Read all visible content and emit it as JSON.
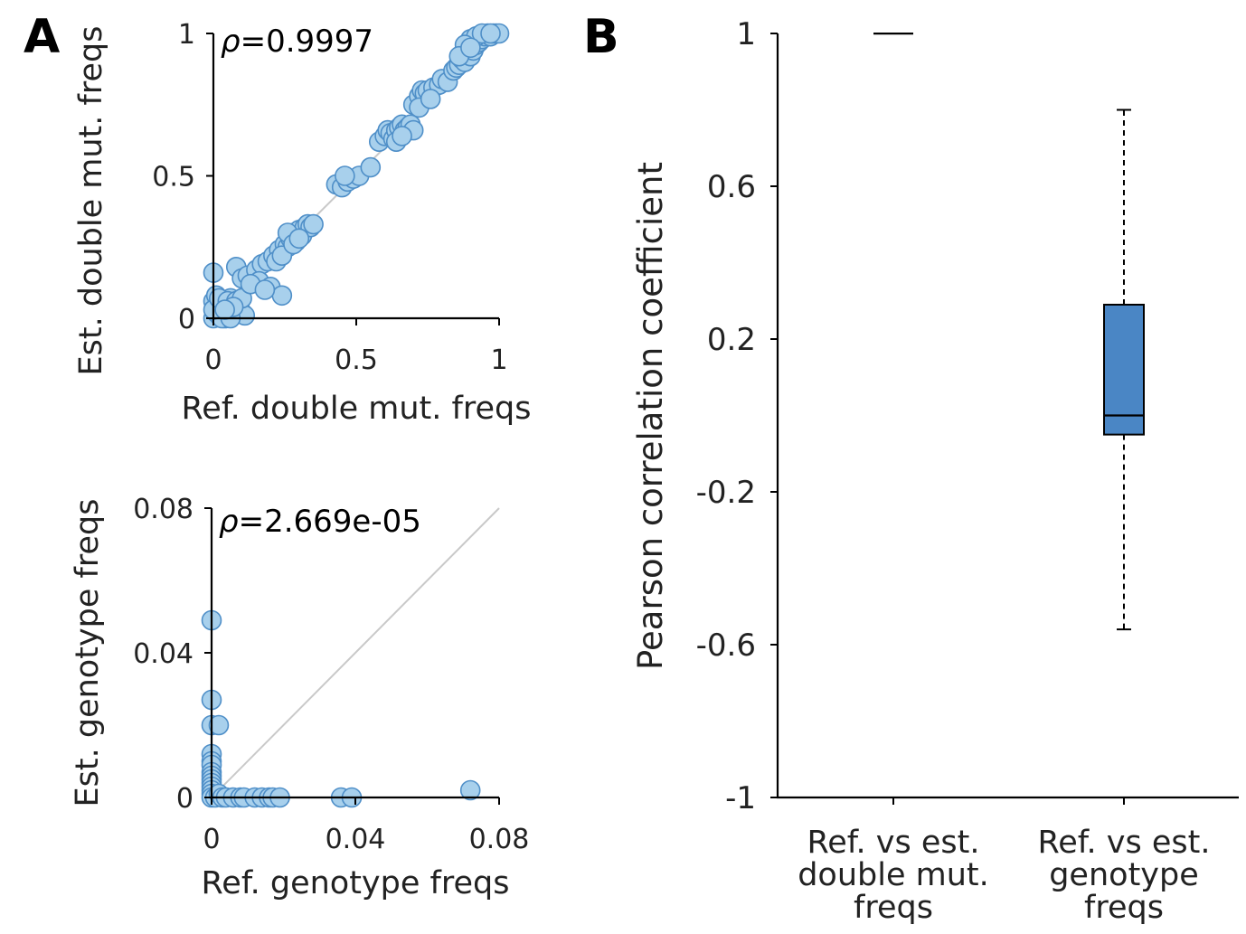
{
  "panel_labels": {
    "a": "A",
    "b": "B"
  },
  "colors": {
    "marker_fill": "#a8d0ec",
    "marker_edge": "#4f8fc8",
    "box_fill": "#4a86c5",
    "diagonal": "#c9c9c9"
  },
  "chart_data": [
    {
      "id": "A-top",
      "type": "scatter",
      "xlabel": "Ref. double mut. freqs",
      "ylabel": "Est. double mut. freqs",
      "annotation": {
        "symbol": "ρ",
        "text": "=0.9997"
      },
      "xlim": [
        0,
        1
      ],
      "ylim": [
        0,
        1
      ],
      "xticks": [
        0,
        0.5,
        1
      ],
      "yticks": [
        0,
        0.5,
        1
      ],
      "xtick_labels": [
        "0",
        "0.5",
        "1"
      ],
      "ytick_labels": [
        "0",
        "0.5",
        "1"
      ],
      "identity_line": true,
      "points": [
        [
          0.0,
          0.0
        ],
        [
          0.01,
          0.02
        ],
        [
          0.02,
          0.01
        ],
        [
          0.03,
          0.05
        ],
        [
          0.0,
          0.06
        ],
        [
          0.01,
          0.08
        ],
        [
          0.02,
          0.04
        ],
        [
          0.04,
          0.0
        ],
        [
          0.05,
          0.02
        ],
        [
          0.06,
          0.07
        ],
        [
          0.07,
          0.01
        ],
        [
          0.08,
          0.03
        ],
        [
          0.09,
          0.05
        ],
        [
          0.1,
          0.02
        ],
        [
          0.11,
          0.01
        ],
        [
          0.03,
          0.0
        ],
        [
          0.06,
          0.0
        ],
        [
          0.0,
          0.03
        ],
        [
          0.02,
          0.07
        ],
        [
          0.05,
          0.06
        ],
        [
          0.08,
          0.06
        ],
        [
          0.1,
          0.07
        ],
        [
          0.07,
          0.04
        ],
        [
          0.04,
          0.03
        ],
        [
          0.0,
          0.16
        ],
        [
          0.08,
          0.18
        ],
        [
          0.1,
          0.14
        ],
        [
          0.12,
          0.15
        ],
        [
          0.15,
          0.17
        ],
        [
          0.17,
          0.19
        ],
        [
          0.19,
          0.2
        ],
        [
          0.16,
          0.13
        ],
        [
          0.13,
          0.12
        ],
        [
          0.2,
          0.11
        ],
        [
          0.24,
          0.08
        ],
        [
          0.18,
          0.1
        ],
        [
          0.21,
          0.22
        ],
        [
          0.23,
          0.24
        ],
        [
          0.22,
          0.2
        ],
        [
          0.25,
          0.26
        ],
        [
          0.26,
          0.25
        ],
        [
          0.27,
          0.28
        ],
        [
          0.28,
          0.3
        ],
        [
          0.29,
          0.27
        ],
        [
          0.3,
          0.31
        ],
        [
          0.31,
          0.29
        ],
        [
          0.32,
          0.32
        ],
        [
          0.33,
          0.33
        ],
        [
          0.34,
          0.32
        ],
        [
          0.35,
          0.33
        ],
        [
          0.24,
          0.22
        ],
        [
          0.26,
          0.3
        ],
        [
          0.28,
          0.26
        ],
        [
          0.3,
          0.28
        ],
        [
          0.43,
          0.47
        ],
        [
          0.45,
          0.46
        ],
        [
          0.47,
          0.48
        ],
        [
          0.49,
          0.49
        ],
        [
          0.51,
          0.5
        ],
        [
          0.55,
          0.53
        ],
        [
          0.46,
          0.5
        ],
        [
          0.58,
          0.62
        ],
        [
          0.6,
          0.64
        ],
        [
          0.61,
          0.66
        ],
        [
          0.62,
          0.65
        ],
        [
          0.63,
          0.63
        ],
        [
          0.64,
          0.66
        ],
        [
          0.65,
          0.67
        ],
        [
          0.66,
          0.68
        ],
        [
          0.67,
          0.66
        ],
        [
          0.68,
          0.67
        ],
        [
          0.69,
          0.68
        ],
        [
          0.7,
          0.66
        ],
        [
          0.64,
          0.62
        ],
        [
          0.66,
          0.64
        ],
        [
          0.7,
          0.75
        ],
        [
          0.72,
          0.78
        ],
        [
          0.73,
          0.8
        ],
        [
          0.74,
          0.79
        ],
        [
          0.75,
          0.8
        ],
        [
          0.77,
          0.81
        ],
        [
          0.79,
          0.82
        ],
        [
          0.8,
          0.84
        ],
        [
          0.82,
          0.83
        ],
        [
          0.72,
          0.74
        ],
        [
          0.76,
          0.77
        ],
        [
          0.84,
          0.87
        ],
        [
          0.85,
          0.88
        ],
        [
          0.86,
          0.89
        ],
        [
          0.87,
          0.91
        ],
        [
          0.88,
          0.9
        ],
        [
          0.89,
          0.93
        ],
        [
          0.9,
          0.92
        ],
        [
          0.91,
          0.94
        ],
        [
          0.92,
          0.96
        ],
        [
          0.93,
          0.97
        ],
        [
          0.94,
          0.98
        ],
        [
          0.95,
          0.99
        ],
        [
          0.96,
          1.0
        ],
        [
          0.97,
          0.99
        ],
        [
          0.98,
          1.0
        ],
        [
          0.99,
          1.0
        ],
        [
          1.0,
          1.0
        ],
        [
          0.9,
          0.98
        ],
        [
          0.92,
          0.99
        ],
        [
          0.94,
          1.0
        ],
        [
          0.88,
          0.96
        ],
        [
          0.86,
          0.92
        ],
        [
          0.9,
          0.95
        ],
        [
          0.97,
          1.0
        ]
      ]
    },
    {
      "id": "A-bottom",
      "type": "scatter",
      "xlabel": "Ref. genotype freqs",
      "ylabel": "Est. genotype freqs",
      "annotation": {
        "symbol": "ρ",
        "text": "=2.669e-05"
      },
      "xlim": [
        0,
        0.08
      ],
      "ylim": [
        0,
        0.08
      ],
      "xticks": [
        0,
        0.04,
        0.08
      ],
      "yticks": [
        0,
        0.04,
        0.08
      ],
      "xtick_labels": [
        "0",
        "0.04",
        "0.08"
      ],
      "ytick_labels": [
        "0",
        "0.04",
        "0.08"
      ],
      "identity_line": true,
      "points": [
        [
          0.0,
          0.049
        ],
        [
          0.0,
          0.027
        ],
        [
          0.0,
          0.02
        ],
        [
          0.002,
          0.02
        ],
        [
          0.0,
          0.012
        ],
        [
          0.0,
          0.01
        ],
        [
          0.0,
          0.009
        ],
        [
          0.0,
          0.007
        ],
        [
          0.0,
          0.006
        ],
        [
          0.0,
          0.005
        ],
        [
          0.0,
          0.004
        ],
        [
          0.0,
          0.003
        ],
        [
          0.0,
          0.002
        ],
        [
          0.0,
          0.001
        ],
        [
          0.0,
          0.0
        ],
        [
          0.001,
          0.0
        ],
        [
          0.002,
          0.001
        ],
        [
          0.003,
          0.0
        ],
        [
          0.004,
          0.0
        ],
        [
          0.006,
          0.0
        ],
        [
          0.008,
          0.0
        ],
        [
          0.009,
          0.0
        ],
        [
          0.012,
          0.0
        ],
        [
          0.014,
          0.0
        ],
        [
          0.016,
          0.0
        ],
        [
          0.017,
          0.0
        ],
        [
          0.019,
          0.0
        ],
        [
          0.036,
          0.0
        ],
        [
          0.039,
          0.0
        ],
        [
          0.072,
          0.002
        ]
      ]
    },
    {
      "id": "B",
      "type": "box",
      "ylabel": "Pearson correlation coefficient",
      "ylim": [
        -1,
        1
      ],
      "yticks": [
        1,
        0.6,
        0.2,
        -0.2,
        -0.6,
        -1
      ],
      "ytick_labels": [
        "1",
        "0.6",
        "0.2",
        "-0.2",
        "-0.6",
        "-1"
      ],
      "categories": [
        [
          "Ref. vs est.",
          "double mut.",
          "freqs"
        ],
        [
          "Ref. vs est.",
          "genotype",
          "freqs"
        ]
      ],
      "boxes": [
        {
          "whislo": 0.9997,
          "q1": 0.9997,
          "med": 0.9997,
          "q3": 0.9997,
          "whishi": 0.9997
        },
        {
          "whislo": -0.56,
          "q1": -0.05,
          "med": 0.0,
          "q3": 0.29,
          "whishi": 0.8
        }
      ]
    }
  ]
}
